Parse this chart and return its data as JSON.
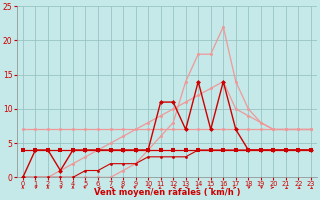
{
  "x": [
    0,
    1,
    2,
    3,
    4,
    5,
    6,
    7,
    8,
    9,
    10,
    11,
    12,
    13,
    14,
    15,
    16,
    17,
    18,
    19,
    20,
    21,
    22,
    23
  ],
  "line_pink_rising": [
    0,
    0,
    0,
    1,
    2,
    3,
    4,
    5,
    6,
    7,
    8,
    9,
    10,
    11,
    12,
    13,
    14,
    10,
    9,
    8,
    7,
    7,
    7,
    7
  ],
  "line_pink_flat7": [
    7,
    7,
    7,
    7,
    7,
    7,
    7,
    7,
    7,
    7,
    7,
    7,
    7,
    7,
    7,
    7,
    7,
    7,
    7,
    7,
    7,
    7,
    7,
    7
  ],
  "line_pink_peaks": [
    0,
    0,
    0,
    0,
    0,
    0,
    0,
    0,
    1,
    2,
    4,
    6,
    8,
    14,
    18,
    18,
    22,
    14,
    10,
    8,
    7,
    7,
    7,
    7
  ],
  "line_dark_flat4": [
    4,
    4,
    4,
    4,
    4,
    4,
    4,
    4,
    4,
    4,
    4,
    4,
    4,
    4,
    4,
    4,
    4,
    4,
    4,
    4,
    4,
    4,
    4,
    4
  ],
  "line_dark_spiky": [
    0,
    4,
    4,
    1,
    4,
    4,
    4,
    4,
    4,
    4,
    4,
    11,
    11,
    7,
    14,
    7,
    14,
    7,
    4,
    4,
    4,
    4,
    4,
    4
  ],
  "line_dark_ramp": [
    0,
    0,
    0,
    0,
    0,
    1,
    1,
    2,
    2,
    2,
    3,
    3,
    3,
    3,
    4,
    4,
    4,
    4,
    4,
    4,
    4,
    4,
    4,
    4
  ],
  "bg_color": "#c5e8e8",
  "grid_color": "#99c4c4",
  "dark_red": "#cc0000",
  "light_pink": "#ee9999",
  "xlabel": "Vent moyen/en rafales ( km/h )"
}
